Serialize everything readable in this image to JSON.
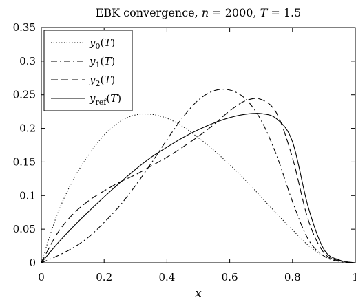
{
  "chart_data": {
    "type": "line",
    "title": "EBK convergence, n = 2000, T = 1.5",
    "xlabel": "x",
    "ylabel": "",
    "xlim": [
      0,
      1
    ],
    "ylim": [
      0,
      0.35
    ],
    "xticks": [
      0,
      0.2,
      0.4,
      0.6,
      0.8,
      1
    ],
    "xtick_labels": [
      "0",
      "0.2",
      "0.4",
      "0.6",
      "0.8",
      "1"
    ],
    "yticks": [
      0,
      0.05,
      0.1,
      0.15,
      0.2,
      0.25,
      0.3,
      0.35
    ],
    "ytick_labels": [
      "0",
      "0.05",
      "0.1",
      "0.15",
      "0.2",
      "0.25",
      "0.3",
      "0.35"
    ],
    "grid": false,
    "legend_position": "top-left",
    "series": [
      {
        "name": "y0(T)",
        "style": "dotted",
        "color": "#000000",
        "x": [
          0,
          0.05,
          0.1,
          0.15,
          0.2,
          0.25,
          0.3,
          0.35,
          0.4,
          0.45,
          0.5,
          0.55,
          0.6,
          0.65,
          0.7,
          0.75,
          0.8,
          0.85,
          0.9,
          0.95,
          1
        ],
        "y": [
          0,
          0.071,
          0.122,
          0.16,
          0.19,
          0.21,
          0.22,
          0.221,
          0.215,
          0.203,
          0.186,
          0.167,
          0.146,
          0.123,
          0.098,
          0.073,
          0.049,
          0.026,
          0.01,
          0.003,
          0
        ]
      },
      {
        "name": "y1(T)",
        "style": "dashdot",
        "color": "#000000",
        "x": [
          0,
          0.05,
          0.1,
          0.15,
          0.2,
          0.25,
          0.3,
          0.35,
          0.4,
          0.45,
          0.5,
          0.55,
          0.6,
          0.65,
          0.7,
          0.75,
          0.8,
          0.85,
          0.9,
          0.95,
          1
        ],
        "y": [
          0,
          0.01,
          0.022,
          0.038,
          0.06,
          0.085,
          0.115,
          0.148,
          0.183,
          0.216,
          0.242,
          0.256,
          0.257,
          0.244,
          0.212,
          0.159,
          0.091,
          0.035,
          0.01,
          0.002,
          0
        ]
      },
      {
        "name": "y2(T)",
        "style": "dashed",
        "color": "#000000",
        "x": [
          0,
          0.05,
          0.1,
          0.15,
          0.2,
          0.25,
          0.3,
          0.35,
          0.4,
          0.45,
          0.5,
          0.55,
          0.6,
          0.65,
          0.7,
          0.75,
          0.8,
          0.85,
          0.9,
          0.95,
          1
        ],
        "y": [
          0,
          0.043,
          0.072,
          0.092,
          0.107,
          0.12,
          0.131,
          0.144,
          0.157,
          0.172,
          0.188,
          0.206,
          0.226,
          0.241,
          0.243,
          0.222,
          0.156,
          0.064,
          0.015,
          0.003,
          0
        ]
      },
      {
        "name": "yref(T)",
        "style": "solid",
        "color": "#000000",
        "x": [
          0,
          0.05,
          0.1,
          0.15,
          0.2,
          0.25,
          0.3,
          0.35,
          0.4,
          0.45,
          0.5,
          0.55,
          0.6,
          0.65,
          0.7,
          0.75,
          0.8,
          0.85,
          0.9,
          0.95,
          1
        ],
        "y": [
          0,
          0.028,
          0.053,
          0.076,
          0.098,
          0.119,
          0.139,
          0.157,
          0.172,
          0.186,
          0.198,
          0.208,
          0.216,
          0.221,
          0.222,
          0.214,
          0.18,
          0.083,
          0.02,
          0.004,
          0
        ]
      }
    ]
  }
}
